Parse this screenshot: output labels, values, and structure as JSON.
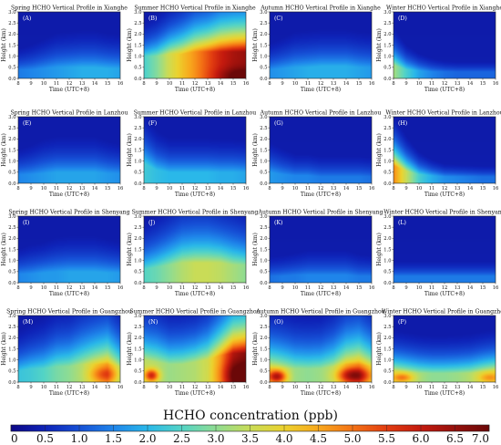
{
  "chart_data": {
    "type": "heatmap",
    "layout": {
      "rows": 4,
      "cols": 4
    },
    "x_axis": {
      "label": "Time (UTC+8)",
      "ticks": [
        8,
        9,
        10,
        11,
        12,
        13,
        14,
        15,
        16
      ],
      "range": [
        8,
        16
      ]
    },
    "y_axis": {
      "label": "Height (km)",
      "ticks": [
        "0.0",
        "0.5",
        "1.0",
        "1.5",
        "2.0",
        "2.5",
        "3.0"
      ],
      "range": [
        0,
        3
      ]
    },
    "colorbar": {
      "title": "HCHO concentration (ppb)",
      "ticks": [
        "0",
        "0.5",
        "1.0",
        "1.5",
        "2.0",
        "2.5",
        "3.0",
        "3.5",
        "4.0",
        "4.5",
        "5.0",
        "5.5",
        "6.0",
        "6.5",
        "7.0"
      ],
      "range": [
        0,
        7
      ],
      "colors": [
        "#0d0887",
        "#0e23b8",
        "#1650d6",
        "#1f85ea",
        "#2ab8e9",
        "#54d4c6",
        "#8fdc93",
        "#c9dc57",
        "#ecd22e",
        "#f8a81d",
        "#f47315",
        "#e23d10",
        "#c41a0e",
        "#96100c",
        "#6b0808"
      ]
    },
    "panels": [
      {
        "id": "(A)",
        "title": "Spring HCHO Vertical Profile in Xianghe",
        "surface": [
          1.4,
          1.5,
          1.6,
          1.7,
          1.8,
          1.9,
          1.9,
          1.9,
          1.8
        ],
        "top": [
          0.4,
          0.4,
          0.45,
          0.5,
          0.5,
          0.5,
          0.5,
          0.45,
          0.45
        ],
        "depth": [
          0.7,
          0.8,
          0.9,
          1.0,
          1.0,
          1.0,
          1.0,
          0.95,
          0.95
        ],
        "hotspots": []
      },
      {
        "id": "(B)",
        "title": "Summer HCHO Vertical Profile in Xianghe",
        "surface": [
          2.4,
          2.9,
          3.6,
          4.2,
          4.7,
          5.3,
          5.9,
          6.3,
          6.5
        ],
        "top": [
          1.0,
          1.0,
          1.1,
          1.1,
          1.2,
          1.2,
          1.2,
          1.2,
          1.2
        ],
        "depth": [
          0.8,
          0.9,
          1.0,
          1.1,
          1.2,
          1.2,
          1.3,
          1.3,
          1.3
        ],
        "hotspots": [
          {
            "t": 15.6,
            "h": 0.1,
            "v": 1.0,
            "st": 1.2,
            "sh": 0.25
          }
        ]
      },
      {
        "id": "(C)",
        "title": "Autumn HCHO Vertical Profile in Xianghe",
        "surface": [
          1.6,
          1.7,
          1.8,
          1.9,
          1.9,
          1.9,
          1.9,
          1.8,
          1.7
        ],
        "top": [
          0.4,
          0.45,
          0.5,
          0.5,
          0.55,
          0.55,
          0.55,
          0.5,
          0.5
        ],
        "depth": [
          0.8,
          0.9,
          1.0,
          1.0,
          1.0,
          1.0,
          1.0,
          1.0,
          1.0
        ],
        "hotspots": []
      },
      {
        "id": "(D)",
        "title": "Winter HCHO Vertical Profile in Xianghe",
        "surface": [
          3.2,
          2.4,
          1.8,
          1.5,
          1.3,
          1.2,
          1.2,
          1.2,
          1.2
        ],
        "top": [
          0.6,
          0.4,
          0.35,
          0.3,
          0.3,
          0.3,
          0.3,
          0.3,
          0.3
        ],
        "depth": [
          0.8,
          0.6,
          0.5,
          0.45,
          0.4,
          0.4,
          0.4,
          0.4,
          0.4
        ],
        "hotspots": []
      },
      {
        "id": "(E)",
        "title": "Spring HCHO Vertical Profile in Lanzhou",
        "surface": [
          1.5,
          1.6,
          1.7,
          1.8,
          1.8,
          1.8,
          1.8,
          1.7,
          1.6
        ],
        "top": [
          0.4,
          0.4,
          0.45,
          0.5,
          0.5,
          0.5,
          0.5,
          0.45,
          0.45
        ],
        "depth": [
          0.8,
          0.9,
          1.0,
          1.0,
          1.0,
          1.0,
          1.0,
          0.95,
          0.9
        ],
        "hotspots": []
      },
      {
        "id": "(F)",
        "title": "Summer HCHO Vertical Profile in Lanzhou",
        "surface": [
          2.3,
          2.1,
          2.0,
          2.0,
          2.0,
          2.0,
          1.9,
          1.9,
          1.8
        ],
        "top": [
          0.9,
          0.6,
          0.5,
          0.5,
          0.5,
          0.5,
          0.5,
          0.5,
          0.5
        ],
        "depth": [
          1.2,
          1.0,
          0.9,
          0.9,
          0.9,
          0.9,
          0.9,
          0.9,
          0.9
        ],
        "hotspots": []
      },
      {
        "id": "(G)",
        "title": "Autumn HCHO Vertical Profile in Lanzhou",
        "surface": [
          1.7,
          1.6,
          1.5,
          1.5,
          1.4,
          1.4,
          1.4,
          1.4,
          1.3
        ],
        "top": [
          0.5,
          0.4,
          0.35,
          0.35,
          0.3,
          0.3,
          0.3,
          0.3,
          0.3
        ],
        "depth": [
          0.9,
          0.8,
          0.7,
          0.7,
          0.7,
          0.7,
          0.7,
          0.7,
          0.7
        ],
        "hotspots": []
      },
      {
        "id": "(H)",
        "title": "Winter HCHO Vertical Profile in Lanzhou",
        "surface": [
          4.8,
          3.5,
          2.4,
          1.9,
          1.6,
          1.5,
          1.4,
          1.3,
          1.3
        ],
        "top": [
          0.8,
          0.55,
          0.4,
          0.35,
          0.3,
          0.3,
          0.3,
          0.3,
          0.3
        ],
        "depth": [
          0.9,
          0.7,
          0.55,
          0.45,
          0.4,
          0.4,
          0.4,
          0.4,
          0.4
        ],
        "hotspots": []
      },
      {
        "id": "(I)",
        "title": "Spring HCHO Vertical Profile in Shenyang",
        "surface": [
          1.5,
          1.6,
          1.7,
          1.7,
          1.8,
          1.8,
          1.8,
          1.8,
          1.7
        ],
        "top": [
          0.4,
          0.4,
          0.45,
          0.5,
          0.5,
          0.5,
          0.5,
          0.45,
          0.45
        ],
        "depth": [
          0.8,
          0.9,
          0.9,
          1.0,
          1.0,
          1.0,
          1.0,
          0.95,
          0.9
        ],
        "hotspots": []
      },
      {
        "id": "(J)",
        "title": "Summer HCHO Vertical Profile in Shenyang",
        "surface": [
          2.5,
          2.7,
          3.0,
          3.3,
          3.5,
          3.5,
          3.4,
          3.2,
          3.0
        ],
        "top": [
          0.6,
          0.7,
          0.8,
          0.9,
          0.9,
          0.9,
          0.9,
          0.8,
          0.8
        ],
        "depth": [
          1.1,
          1.2,
          1.3,
          1.4,
          1.4,
          1.4,
          1.3,
          1.3,
          1.2
        ],
        "hotspots": []
      },
      {
        "id": "(K)",
        "title": "Autumn HCHO Vertical Profile in Shenyang",
        "surface": [
          1.3,
          1.4,
          1.4,
          1.5,
          1.5,
          1.5,
          1.5,
          1.4,
          1.4
        ],
        "top": [
          0.3,
          0.3,
          0.35,
          0.35,
          0.35,
          0.35,
          0.35,
          0.3,
          0.3
        ],
        "depth": [
          0.7,
          0.7,
          0.75,
          0.8,
          0.8,
          0.8,
          0.8,
          0.75,
          0.7
        ],
        "hotspots": []
      },
      {
        "id": "(L)",
        "title": "Winter HCHO Vertical Profile in Shenyang",
        "surface": [
          1.4,
          1.4,
          1.4,
          1.4,
          1.4,
          1.4,
          1.4,
          1.4,
          1.4
        ],
        "top": [
          0.3,
          0.3,
          0.3,
          0.3,
          0.3,
          0.3,
          0.3,
          0.3,
          0.3
        ],
        "depth": [
          0.5,
          0.5,
          0.5,
          0.5,
          0.5,
          0.5,
          0.5,
          0.5,
          0.5
        ],
        "hotspots": []
      },
      {
        "id": "(M)",
        "title": "Spring HCHO Vertical Profile in Guangzhou",
        "surface": [
          2.2,
          2.3,
          2.5,
          2.8,
          3.0,
          3.3,
          3.9,
          4.4,
          3.2
        ],
        "top": [
          0.5,
          0.6,
          0.6,
          0.7,
          0.7,
          0.8,
          0.8,
          0.8,
          0.7
        ],
        "depth": [
          1.0,
          1.1,
          1.2,
          1.3,
          1.3,
          1.4,
          1.4,
          1.4,
          1.3
        ],
        "hotspots": [
          {
            "t": 14.8,
            "h": 0.35,
            "v": 1.2,
            "st": 0.8,
            "sh": 0.25
          }
        ]
      },
      {
        "id": "(N)",
        "title": "Summer HCHO Vertical Profile in Guangzhou",
        "surface": [
          3.4,
          3.3,
          3.1,
          3.2,
          3.3,
          3.6,
          4.6,
          6.1,
          6.6
        ],
        "top": [
          1.0,
          0.9,
          0.8,
          0.8,
          0.9,
          1.0,
          1.2,
          1.3,
          1.3
        ],
        "depth": [
          1.3,
          1.3,
          1.2,
          1.2,
          1.2,
          1.3,
          1.4,
          1.5,
          1.5
        ],
        "hotspots": [
          {
            "t": 8.6,
            "h": 0.3,
            "v": 2.5,
            "st": 0.4,
            "sh": 0.2
          },
          {
            "t": 15.4,
            "h": 0.3,
            "v": 1.2,
            "st": 0.9,
            "sh": 0.45
          }
        ]
      },
      {
        "id": "(O)",
        "title": "Autumn HCHO Vertical Profile in Guangzhou",
        "surface": [
          4.0,
          3.6,
          3.1,
          3.0,
          3.1,
          3.3,
          4.1,
          4.5,
          3.8
        ],
        "top": [
          0.6,
          0.6,
          0.6,
          0.6,
          0.6,
          0.7,
          0.8,
          0.8,
          0.7
        ],
        "depth": [
          1.2,
          1.2,
          1.2,
          1.2,
          1.2,
          1.3,
          1.4,
          1.4,
          1.3
        ],
        "hotspots": [
          {
            "t": 8.6,
            "h": 0.25,
            "v": 2.5,
            "st": 0.5,
            "sh": 0.2
          },
          {
            "t": 14.6,
            "h": 0.3,
            "v": 2.4,
            "st": 0.9,
            "sh": 0.25
          }
        ]
      },
      {
        "id": "(P)",
        "title": "Winter HCHO Vertical Profile in Guangzhou",
        "surface": [
          3.6,
          3.4,
          3.2,
          3.0,
          3.0,
          3.1,
          3.3,
          3.6,
          3.8
        ],
        "top": [
          0.5,
          0.45,
          0.4,
          0.4,
          0.4,
          0.4,
          0.4,
          0.45,
          0.5
        ],
        "depth": [
          0.8,
          0.8,
          0.8,
          0.8,
          0.8,
          0.8,
          0.8,
          0.8,
          0.8
        ],
        "hotspots": [
          {
            "t": 8.7,
            "h": 0.2,
            "v": 1.5,
            "st": 0.6,
            "sh": 0.15
          },
          {
            "t": 15.5,
            "h": 0.2,
            "v": 1.0,
            "st": 0.6,
            "sh": 0.15
          }
        ]
      }
    ]
  }
}
